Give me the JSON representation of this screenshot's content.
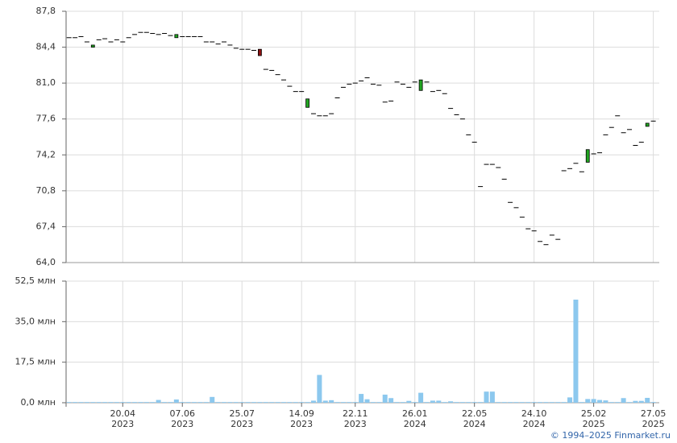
{
  "chart_data": [
    {
      "type": "candlestick",
      "open": [
        85.3,
        85.3,
        85.4,
        84.9,
        84.4,
        85.1,
        85.2,
        84.9,
        85.1,
        84.9,
        85.3,
        85.6,
        85.8,
        85.8,
        85.7,
        85.6,
        85.7,
        85.5,
        85.3,
        85.4,
        85.4,
        85.4,
        85.4,
        84.9,
        84.9,
        84.7,
        84.9,
        84.6,
        84.3,
        84.2,
        84.2,
        84.1,
        84.2,
        82.3,
        82.2,
        81.8,
        81.3,
        80.7,
        80.2,
        80.2,
        78.7,
        78.1,
        77.9,
        77.9,
        78.1,
        79.6,
        80.6,
        80.9,
        81.0,
        81.2,
        81.5,
        80.9,
        80.8,
        79.2,
        79.3,
        81.1,
        80.9,
        80.6,
        81.1,
        80.3,
        81.1,
        80.2,
        80.3,
        80.0,
        78.6,
        78.0,
        77.6,
        76.1,
        75.4,
        71.2,
        73.3,
        73.3,
        73.0,
        71.9,
        69.7,
        69.2,
        68.3,
        67.2,
        67.0,
        66.0,
        65.7,
        66.6,
        66.2,
        72.7,
        72.9,
        73.4,
        72.6,
        73.5,
        74.3,
        74.4,
        76.1,
        76.8,
        77.9,
        76.3,
        76.6,
        75.1,
        75.4,
        76.9,
        77.4
      ],
      "close": [
        85.3,
        85.3,
        85.4,
        84.9,
        84.6,
        85.1,
        85.2,
        84.9,
        85.1,
        84.9,
        85.3,
        85.6,
        85.8,
        85.8,
        85.7,
        85.6,
        85.7,
        85.5,
        85.6,
        85.4,
        85.4,
        85.4,
        85.4,
        84.9,
        84.9,
        84.7,
        84.9,
        84.6,
        84.3,
        84.2,
        84.2,
        84.1,
        83.6,
        82.3,
        82.2,
        81.8,
        81.3,
        80.7,
        80.2,
        80.2,
        79.5,
        78.1,
        77.9,
        77.9,
        78.1,
        79.6,
        80.6,
        80.9,
        81.0,
        81.2,
        81.5,
        80.9,
        80.8,
        79.2,
        79.3,
        81.1,
        80.9,
        80.6,
        81.1,
        81.3,
        81.1,
        80.2,
        80.3,
        80.0,
        78.6,
        78.0,
        77.6,
        76.1,
        75.4,
        71.2,
        73.3,
        73.3,
        73.0,
        71.9,
        69.7,
        69.2,
        68.3,
        67.2,
        67.0,
        66.0,
        65.7,
        66.6,
        66.2,
        72.7,
        72.9,
        73.4,
        72.6,
        74.7,
        74.3,
        74.4,
        76.1,
        76.8,
        77.9,
        76.3,
        76.6,
        75.1,
        75.4,
        77.2,
        77.4
      ],
      "up_color": "#22a622",
      "down_color": "#8b1010",
      "flat_color": "#000000",
      "ylim": [
        64.0,
        87.8
      ],
      "yticks": [
        {
          "value": 64.0,
          "label": "64,0"
        },
        {
          "value": 67.4,
          "label": "67,4"
        },
        {
          "value": 70.8,
          "label": "70,8"
        },
        {
          "value": 74.2,
          "label": "74,2"
        },
        {
          "value": 77.6,
          "label": "77,6"
        },
        {
          "value": 81.0,
          "label": "81,0"
        },
        {
          "value": 84.4,
          "label": "84,4"
        },
        {
          "value": 87.8,
          "label": "87,8"
        }
      ],
      "grid": true
    },
    {
      "type": "bar",
      "values": [
        0.3,
        0.3,
        0.3,
        0.3,
        0.3,
        0.3,
        0.3,
        0.3,
        0.3,
        0.3,
        0.3,
        0.3,
        0.3,
        0.3,
        0.3,
        1.2,
        0.3,
        0.3,
        1.4,
        0.3,
        0.3,
        0.3,
        0.3,
        0.3,
        2.5,
        0.3,
        0.3,
        0.3,
        0.3,
        0.3,
        0.3,
        0.3,
        0.3,
        0.3,
        0.3,
        0.3,
        0.3,
        0.3,
        0.3,
        0.3,
        0.3,
        0.9,
        12.0,
        0.9,
        1.1,
        0.3,
        0.3,
        0.3,
        0.3,
        3.8,
        1.5,
        0.3,
        0.3,
        3.5,
        2.0,
        0.3,
        0.3,
        0.8,
        0.3,
        4.3,
        0.3,
        0.9,
        0.9,
        0.3,
        0.6,
        0.3,
        0.3,
        0.3,
        0.3,
        0.3,
        4.8,
        4.8,
        0.3,
        0.3,
        0.3,
        0.3,
        0.3,
        0.3,
        0.3,
        0.3,
        0.3,
        0.3,
        0.3,
        0.3,
        2.3,
        44.5,
        0.3,
        1.6,
        1.6,
        1.2,
        1.0,
        0.3,
        0.3,
        2.0,
        0.3,
        0.8,
        0.8,
        2.1,
        0.3
      ],
      "color": "#8cc8ee",
      "ylim": [
        0,
        52.5
      ],
      "yticks": [
        {
          "value": 0,
          "label": "0,0 млн"
        },
        {
          "value": 17.5,
          "label": "17,5 млн"
        },
        {
          "value": 35.0,
          "label": "35,0 млн"
        },
        {
          "value": 52.5,
          "label": "52,5 млн"
        }
      ],
      "grid": true,
      "xlim": [
        -0.5,
        99
      ],
      "xticks": [
        {
          "value": 9,
          "label": "20.04\n2023"
        },
        {
          "value": 19,
          "label": "07.06\n2023"
        },
        {
          "value": 29,
          "label": "25.07\n2023"
        },
        {
          "value": 39,
          "label": "14.09\n2023"
        },
        {
          "value": 48,
          "label": "22.11\n2023"
        },
        {
          "value": 58,
          "label": "26.01\n2024"
        },
        {
          "value": 68,
          "label": "22.05\n2024"
        },
        {
          "value": 78,
          "label": "24.10\n2024"
        },
        {
          "value": 88,
          "label": "25.02\n2025"
        },
        {
          "value": 98,
          "label": "27.05\n2025"
        }
      ]
    }
  ],
  "credit": "© 1994–2025 Finmarket.ru"
}
